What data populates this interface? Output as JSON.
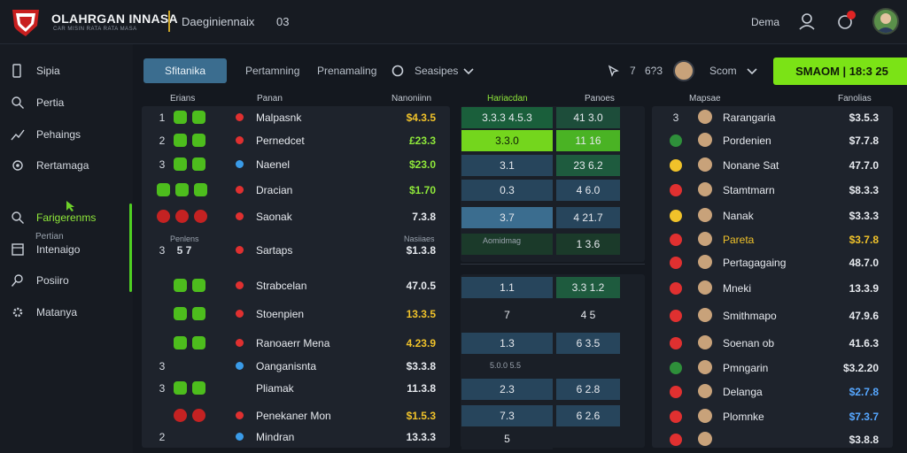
{
  "header": {
    "brand": "OLAHRGAN INNASA",
    "brand_sub": "CAR MISIN RATA RATA MASA",
    "nav_title": "Daeginiennaix",
    "nav_num": "03",
    "user_name": "Dema"
  },
  "sidebar": {
    "items": [
      {
        "label": "Sipia",
        "icon": "monitor-icon"
      },
      {
        "label": "Pertia",
        "icon": "search-icon"
      },
      {
        "label": "Pehaings",
        "icon": "chart-icon"
      },
      {
        "label": "Rertamaga",
        "icon": "gear-icon"
      },
      {
        "label": "Farigerenms",
        "icon": "search-icon"
      },
      {
        "label": "Intenaigo",
        "icon": "table-icon"
      },
      {
        "label": "Posiiro",
        "icon": "pin-icon"
      },
      {
        "label": "Matanya",
        "icon": "settings-icon"
      }
    ],
    "sub_label": "Pertian"
  },
  "tabs": {
    "active": "Sfitanika",
    "items": [
      "Pertamning",
      "Prenamaling",
      "Seasipes"
    ],
    "stat_1": "7",
    "stat_2": "6?3",
    "player_label": "Scom",
    "cta": "SMAOM | 18:3 25"
  },
  "left_table": {
    "headers": [
      "Erians",
      "Panan",
      "Nanoniinn"
    ],
    "subheader": "Penlens",
    "subheader2": "Nasiiaes",
    "rows": [
      {
        "rank": "1",
        "name": "Malpasnk",
        "value": "$4.3.5",
        "vcolor": "y",
        "chips": "gg",
        "dot": "#e03030"
      },
      {
        "rank": "2",
        "name": "Pernedcet",
        "value": "£23.3",
        "vcolor": "g",
        "chips": "gg",
        "dot": "#e03030"
      },
      {
        "rank": "3",
        "name": "Naenel",
        "value": "$23.0",
        "vcolor": "g",
        "chips": "gg",
        "dot": "#3a9be8"
      },
      {
        "rank": "",
        "name": "Dracian",
        "value": "$1.70",
        "vcolor": "g",
        "chips": "ggg",
        "dot": "#e03030"
      },
      {
        "rank": "",
        "name": "Saonak",
        "value": "7.3.8",
        "vcolor": "w",
        "chips": "rrr",
        "dot": "#e03030"
      },
      {
        "rank": "3",
        "name": "Sartaps",
        "value": "$1.3.8",
        "vcolor": "w",
        "chips": "",
        "dot": "#e03030",
        "extra": "5 7"
      },
      {
        "rank": "",
        "name": "Strabcelan",
        "value": "47.0.5",
        "vcolor": "w",
        "chips": "gg",
        "dot": "#e03030"
      },
      {
        "rank": "",
        "name": "Stoenpien",
        "value": "13.3.5",
        "vcolor": "y",
        "chips": "gg",
        "dot": "#e03030"
      },
      {
        "rank": "",
        "name": "Ranoaerr Mena",
        "value": "4.23.9",
        "vcolor": "y",
        "chips": "gg",
        "dot": "#e03030"
      },
      {
        "rank": "3",
        "name": "Oanganisnta",
        "value": "$3.3.8",
        "vcolor": "w",
        "chips": "",
        "dot": "#3a9be8"
      },
      {
        "rank": "3",
        "name": "Pliamak",
        "value": "11.3.8",
        "vcolor": "w",
        "chips": "gg",
        "dot": ""
      },
      {
        "rank": "",
        "name": "Penekaner Mon",
        "value": "$1.5.3",
        "vcolor": "y",
        "chips": "rr",
        "dot": "#e03030"
      },
      {
        "rank": "2",
        "name": "Mindran",
        "value": "13.3.3",
        "vcolor": "w",
        "chips": "",
        "dot": "#3a9be8"
      }
    ]
  },
  "mid_table": {
    "headers": [
      "Hariacdan",
      "Panoes"
    ],
    "subheader": "Aomidmag",
    "subheader2": "5.0.0 5.5",
    "rows_top": [
      {
        "a": "3.3.3",
        "b": "4.5.3",
        "c": "41",
        "d": "3.0"
      },
      {
        "a": "3.3.0",
        "b": "",
        "c": "11",
        "d": "16"
      },
      {
        "a": "3.1",
        "b": "",
        "c": "23",
        "d": "6.2"
      },
      {
        "a": "0.3",
        "b": "",
        "c": "4",
        "d": "6.0"
      },
      {
        "a": "3.7",
        "b": "",
        "c": "4",
        "d": "21.7"
      },
      {
        "a": "",
        "b": "",
        "c": "1",
        "d": "3.6"
      }
    ],
    "rows_bottom": [
      {
        "a": "1.1",
        "c": "3.3",
        "d": "1.2"
      },
      {
        "a": "7",
        "c": "4",
        "d": "5"
      },
      {
        "a": "1.3",
        "c": "6",
        "d": "3.5"
      },
      {
        "a": "2.3",
        "c": "6",
        "d": "2.8"
      },
      {
        "a": "7.3",
        "c": "6",
        "d": "2.6"
      },
      {
        "a": "5",
        "c": "",
        "d": ""
      }
    ]
  },
  "right_table": {
    "headers": [
      "Mapsae",
      "Fanolias"
    ],
    "rows": [
      {
        "rank": "3",
        "name": "Rarangaria",
        "value": "$3.5.3",
        "vcolor": "w"
      },
      {
        "rank": "",
        "name": "Pordenien",
        "value": "$7.7.8",
        "vcolor": "w"
      },
      {
        "rank": "",
        "name": "Nonane Sat",
        "value": "47.7.0",
        "vcolor": "w"
      },
      {
        "rank": "",
        "name": "Stamtmarn",
        "value": "$8.3.3",
        "vcolor": "w"
      },
      {
        "rank": "",
        "name": "Nanak",
        "value": "$3.3.3",
        "vcolor": "w"
      },
      {
        "rank": "",
        "name": "Pareta",
        "value": "$3.7.8",
        "vcolor": "y"
      },
      {
        "rank": "",
        "name": "Pertagagaing",
        "value": "48.7.0",
        "vcolor": "w"
      },
      {
        "rank": "",
        "name": "Mneki",
        "value": "13.3.9",
        "vcolor": "w"
      },
      {
        "rank": "",
        "name": "Smithmapo",
        "value": "47.9.6",
        "vcolor": "w"
      },
      {
        "rank": "",
        "name": "Soenan ob",
        "value": "41.6.3",
        "vcolor": "w"
      },
      {
        "rank": "",
        "name": "Pmngarin",
        "value": "$3.2.20",
        "vcolor": "w"
      },
      {
        "rank": "",
        "name": "Delanga",
        "value": "$2.7.8",
        "vcolor": "b"
      },
      {
        "rank": "",
        "name": "Plomnke",
        "value": "$7.3.7",
        "vcolor": "b"
      },
      {
        "rank": "",
        "name": "",
        "value": "$3.8.8",
        "vcolor": "w"
      }
    ]
  }
}
